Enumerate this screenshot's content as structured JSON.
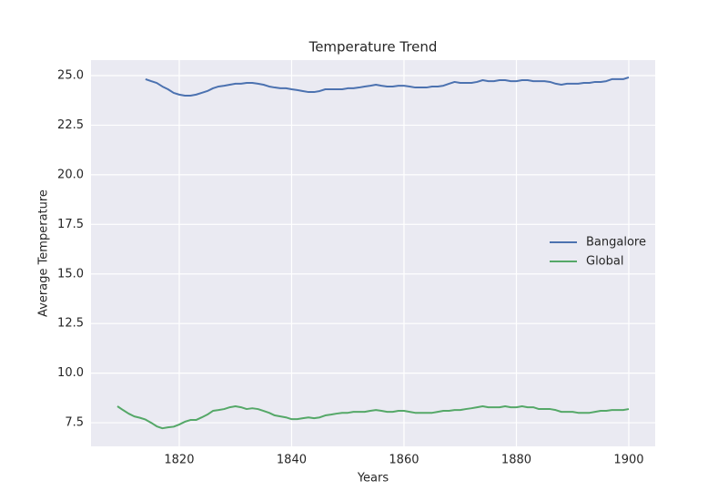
{
  "chart_data": {
    "type": "line",
    "title": "Temperature Trend",
    "x_label": "Years",
    "y_label": "Average Temperature",
    "x": [
      1809,
      1810,
      1811,
      1812,
      1813,
      1814,
      1815,
      1816,
      1817,
      1818,
      1819,
      1820,
      1821,
      1822,
      1823,
      1824,
      1825,
      1826,
      1827,
      1828,
      1829,
      1830,
      1831,
      1832,
      1833,
      1834,
      1835,
      1836,
      1837,
      1838,
      1839,
      1840,
      1841,
      1842,
      1843,
      1844,
      1845,
      1846,
      1847,
      1848,
      1849,
      1850,
      1851,
      1852,
      1853,
      1854,
      1855,
      1856,
      1857,
      1858,
      1859,
      1860,
      1861,
      1862,
      1863,
      1864,
      1865,
      1866,
      1867,
      1868,
      1869,
      1870,
      1871,
      1872,
      1873,
      1874,
      1875,
      1876,
      1877,
      1878,
      1879,
      1880,
      1881,
      1882,
      1883,
      1884,
      1885,
      1886,
      1887,
      1888,
      1889,
      1890,
      1891,
      1892,
      1893,
      1894,
      1895,
      1896,
      1897,
      1898,
      1899,
      1900
    ],
    "series": [
      {
        "name": "Bangalore",
        "color": "#4c72b0",
        "values": [
          null,
          null,
          null,
          null,
          null,
          24.82,
          24.72,
          24.63,
          24.45,
          24.31,
          24.13,
          24.04,
          23.99,
          23.99,
          24.04,
          24.13,
          24.22,
          24.36,
          24.45,
          24.49,
          24.54,
          24.59,
          24.59,
          24.63,
          24.63,
          24.59,
          24.54,
          24.45,
          24.4,
          24.36,
          24.36,
          24.31,
          24.27,
          24.22,
          24.17,
          24.17,
          24.22,
          24.31,
          24.31,
          24.31,
          24.31,
          24.36,
          24.36,
          24.4,
          24.45,
          24.49,
          24.54,
          24.49,
          24.45,
          24.45,
          24.49,
          24.49,
          24.45,
          24.4,
          24.4,
          24.4,
          24.45,
          24.45,
          24.49,
          24.59,
          24.68,
          24.63,
          24.63,
          24.63,
          24.68,
          24.77,
          24.72,
          24.72,
          24.77,
          24.77,
          24.72,
          24.72,
          24.77,
          24.77,
          24.72,
          24.72,
          24.72,
          24.68,
          24.59,
          24.54,
          24.59,
          24.59,
          24.59,
          24.63,
          24.63,
          24.68,
          24.68,
          24.72,
          24.82,
          24.82,
          24.82,
          24.91
        ]
      },
      {
        "name": "Global",
        "color": "#55a868",
        "values": [
          8.33,
          8.14,
          7.96,
          7.82,
          7.75,
          7.66,
          7.5,
          7.32,
          7.22,
          7.27,
          7.3,
          7.41,
          7.55,
          7.64,
          7.64,
          7.77,
          7.91,
          8.1,
          8.14,
          8.19,
          8.28,
          8.33,
          8.28,
          8.19,
          8.23,
          8.19,
          8.1,
          8.0,
          7.87,
          7.82,
          7.77,
          7.68,
          7.68,
          7.73,
          7.77,
          7.73,
          7.77,
          7.87,
          7.91,
          7.96,
          8.0,
          8.0,
          8.05,
          8.05,
          8.05,
          8.1,
          8.14,
          8.1,
          8.05,
          8.05,
          8.1,
          8.1,
          8.05,
          8.0,
          8.0,
          8.0,
          8.0,
          8.05,
          8.1,
          8.1,
          8.14,
          8.14,
          8.19,
          8.23,
          8.28,
          8.33,
          8.28,
          8.28,
          8.28,
          8.33,
          8.28,
          8.28,
          8.33,
          8.28,
          8.28,
          8.19,
          8.19,
          8.19,
          8.14,
          8.05,
          8.05,
          8.05,
          8.0,
          8.0,
          8.0,
          8.05,
          8.1,
          8.1,
          8.14,
          8.14,
          8.14,
          8.19
        ]
      }
    ],
    "xlim": [
      1804.3,
      1904.7
    ],
    "ylim": [
      6.31,
      25.78
    ],
    "xticks": [
      1820,
      1840,
      1860,
      1880,
      1900
    ],
    "yticks": [
      {
        "value": 7.5,
        "label": "7.5"
      },
      {
        "value": 10,
        "label": "10.0"
      },
      {
        "value": 12.5,
        "label": "12.5"
      },
      {
        "value": 15,
        "label": "15.0"
      },
      {
        "value": 17.5,
        "label": "17.5"
      },
      {
        "value": 20,
        "label": "20.0"
      },
      {
        "value": 22.5,
        "label": "22.5"
      },
      {
        "value": 25,
        "label": "25.0"
      }
    ],
    "grid": true,
    "legend": "center right"
  }
}
